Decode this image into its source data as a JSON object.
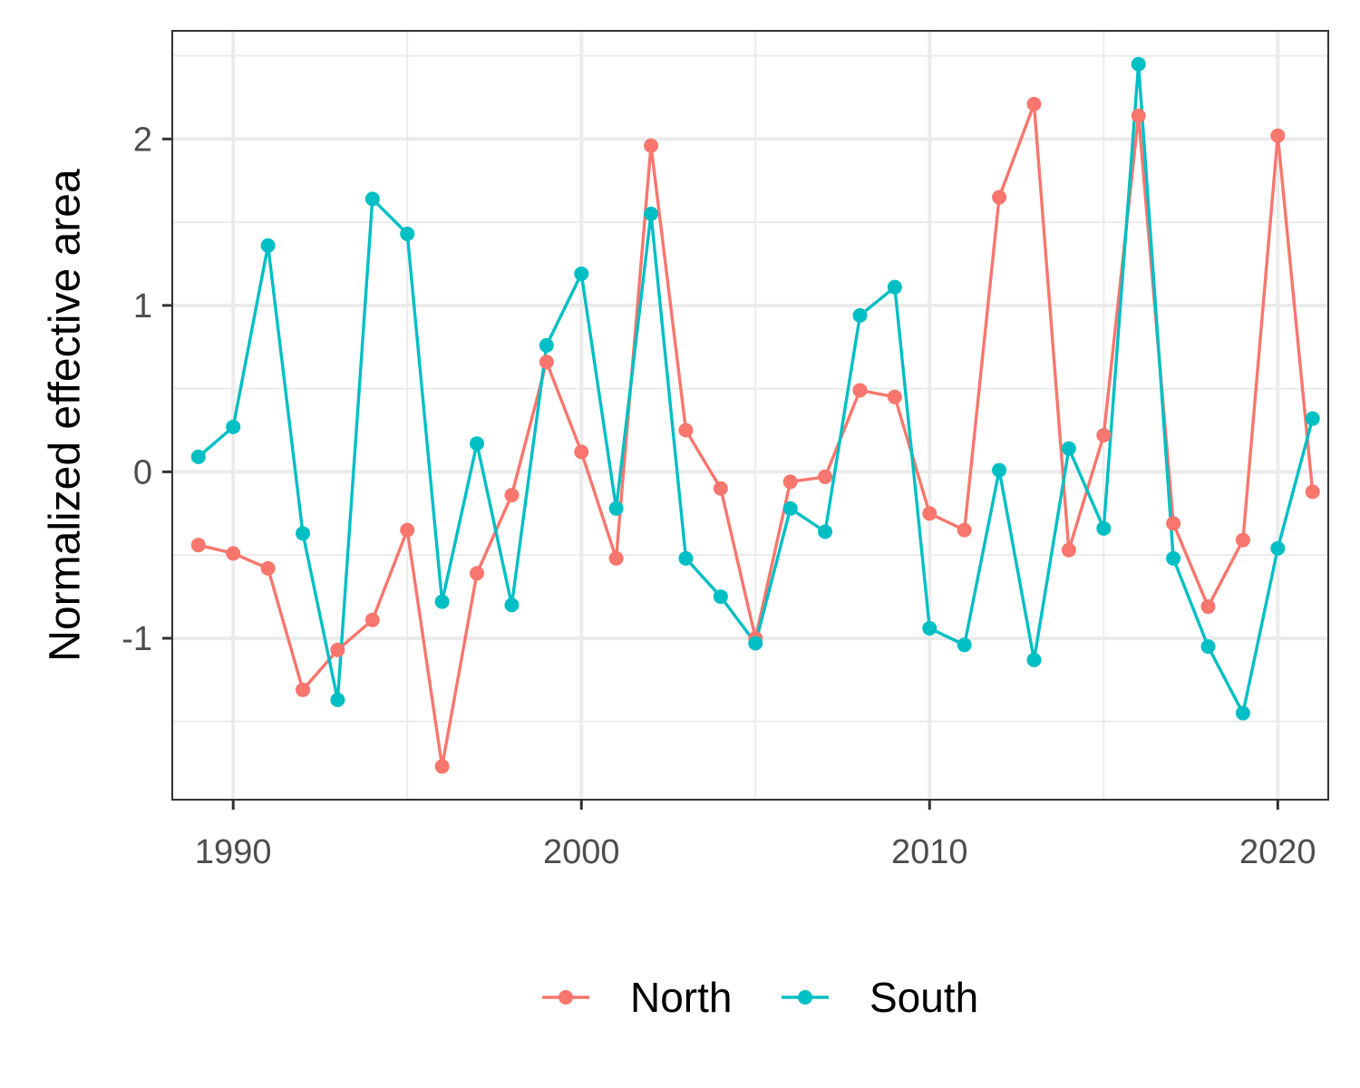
{
  "chart_data": {
    "type": "line",
    "xlabel": "",
    "ylabel": "Normalized effective area",
    "x": [
      1989,
      1990,
      1991,
      1992,
      1993,
      1994,
      1995,
      1996,
      1997,
      1998,
      1999,
      2000,
      2001,
      2002,
      2003,
      2004,
      2005,
      2006,
      2007,
      2008,
      2009,
      2010,
      2011,
      2012,
      2013,
      2014,
      2015,
      2016,
      2017,
      2018,
      2019,
      2020,
      2021
    ],
    "series": [
      {
        "name": "North",
        "color": "#F8766D",
        "values": [
          -0.44,
          -0.49,
          -0.58,
          -1.31,
          -1.07,
          -0.89,
          -0.35,
          -1.77,
          -0.61,
          -0.14,
          0.66,
          0.12,
          -0.52,
          1.96,
          0.25,
          -0.1,
          -1.0,
          -0.06,
          -0.03,
          0.49,
          0.45,
          -0.25,
          -0.35,
          1.65,
          2.21,
          -0.47,
          0.22,
          2.14,
          -0.31,
          -0.81,
          -0.41,
          2.02,
          -0.12
        ]
      },
      {
        "name": "South",
        "color": "#00BFC4",
        "values": [
          0.09,
          0.27,
          1.36,
          -0.37,
          -1.37,
          1.64,
          1.43,
          -0.78,
          0.17,
          -0.8,
          0.76,
          1.19,
          -0.22,
          1.55,
          -0.52,
          -0.75,
          -1.03,
          -0.22,
          -0.36,
          0.94,
          1.11,
          -0.94,
          -1.04,
          0.01,
          -1.13,
          0.14,
          -0.34,
          2.45,
          -0.52,
          -1.05,
          -1.45,
          -0.46,
          0.32
        ]
      }
    ],
    "xlim": [
      1988.25,
      2021.45
    ],
    "ylim": [
      -1.97,
      2.65
    ],
    "x_ticks": [
      1990,
      2000,
      2010,
      2020
    ],
    "x_tick_labels": [
      "1990",
      "2000",
      "2010",
      "2020"
    ],
    "y_ticks": [
      -1,
      0,
      1,
      2
    ],
    "y_tick_labels": [
      "-1",
      "0",
      "1",
      "2"
    ],
    "grid": true,
    "legend_position": "bottom"
  }
}
